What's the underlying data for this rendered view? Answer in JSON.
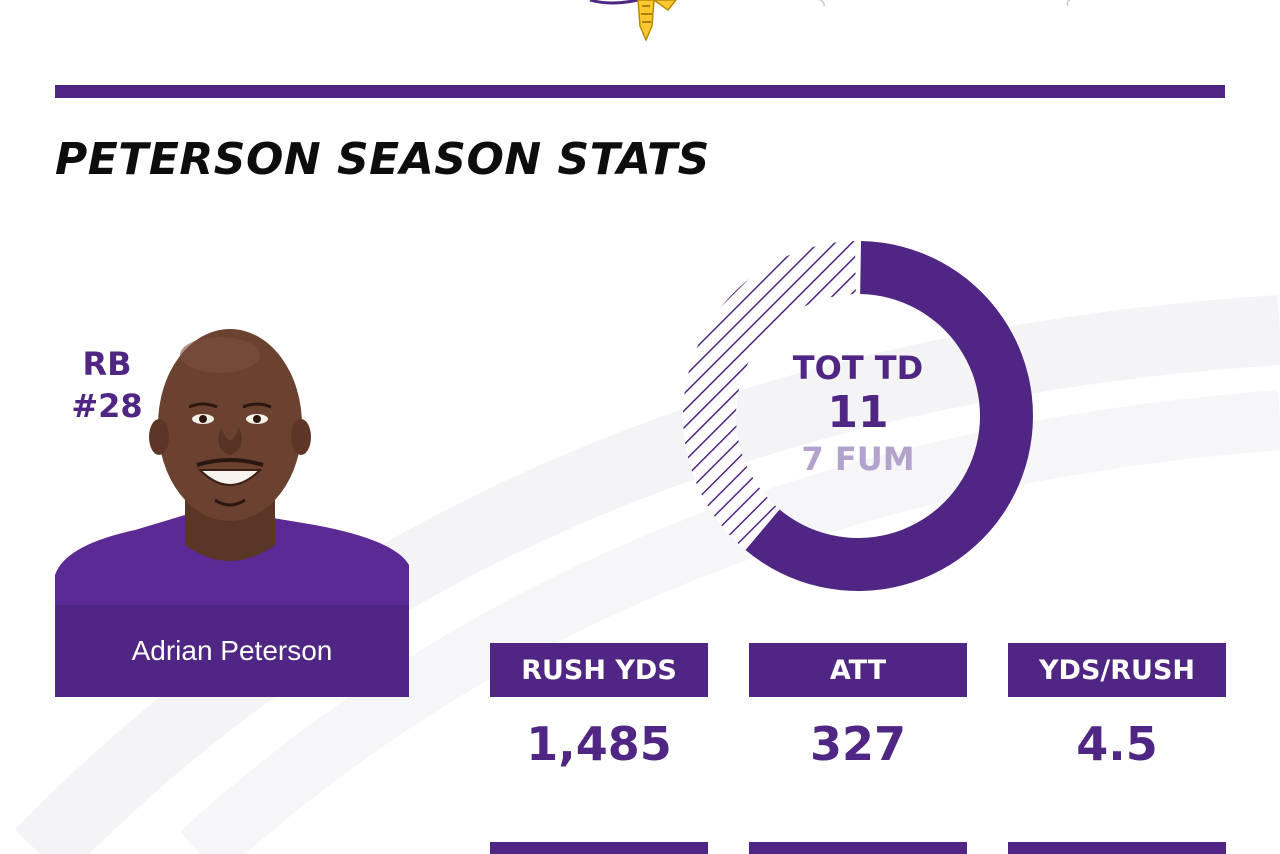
{
  "colors": {
    "primary_purple": "#4f2683",
    "light_purple": "#b3a3cc",
    "gold": "#ffc62f",
    "title_black": "#0d0d0d",
    "background": "#ffffff"
  },
  "header": {
    "logo_icon": "vikings-head-logo-icon"
  },
  "title": "PETERSON SEASON STATS",
  "player": {
    "position": "RB",
    "number": "#28",
    "name": "Adrian Peterson"
  },
  "donut": {
    "label": "TOT TD",
    "value": "11",
    "sub": "7 FUM",
    "touchdowns": 11,
    "fumbles": 7
  },
  "stats": [
    {
      "label": "RUSH YDS",
      "value": "1,485"
    },
    {
      "label": "ATT",
      "value": "327"
    },
    {
      "label": "YDS/RUSH",
      "value": "4.5"
    }
  ]
}
